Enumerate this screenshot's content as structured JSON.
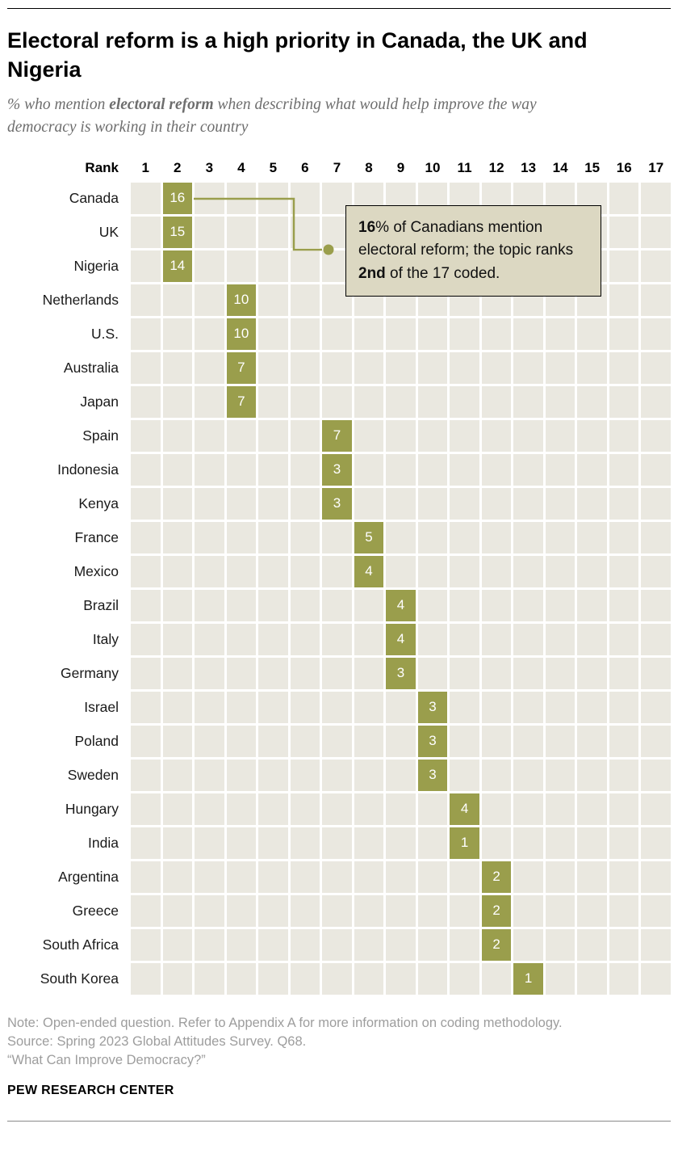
{
  "header": {
    "title": "Electoral reform is a high priority in Canada, the UK and Nigeria",
    "subtitle_prefix": "% who mention ",
    "subtitle_bold": "electoral reform",
    "subtitle_suffix": " when describing what would help improve the way democracy is working in their country"
  },
  "chart_data": {
    "type": "heatmap",
    "rank_header": "Rank",
    "rank_columns": [
      1,
      2,
      3,
      4,
      5,
      6,
      7,
      8,
      9,
      10,
      11,
      12,
      13,
      14,
      15,
      16,
      17
    ],
    "rows": [
      {
        "country": "Canada",
        "rank": 2,
        "value": 16
      },
      {
        "country": "UK",
        "rank": 2,
        "value": 15
      },
      {
        "country": "Nigeria",
        "rank": 2,
        "value": 14
      },
      {
        "country": "Netherlands",
        "rank": 4,
        "value": 10
      },
      {
        "country": "U.S.",
        "rank": 4,
        "value": 10
      },
      {
        "country": "Australia",
        "rank": 4,
        "value": 7
      },
      {
        "country": "Japan",
        "rank": 4,
        "value": 7
      },
      {
        "country": "Spain",
        "rank": 7,
        "value": 7
      },
      {
        "country": "Indonesia",
        "rank": 7,
        "value": 3
      },
      {
        "country": "Kenya",
        "rank": 7,
        "value": 3
      },
      {
        "country": "France",
        "rank": 8,
        "value": 5
      },
      {
        "country": "Mexico",
        "rank": 8,
        "value": 4
      },
      {
        "country": "Brazil",
        "rank": 9,
        "value": 4
      },
      {
        "country": "Italy",
        "rank": 9,
        "value": 4
      },
      {
        "country": "Germany",
        "rank": 9,
        "value": 3
      },
      {
        "country": "Israel",
        "rank": 10,
        "value": 3
      },
      {
        "country": "Poland",
        "rank": 10,
        "value": 3
      },
      {
        "country": "Sweden",
        "rank": 10,
        "value": 3
      },
      {
        "country": "Hungary",
        "rank": 11,
        "value": 4
      },
      {
        "country": "India",
        "rank": 11,
        "value": 1
      },
      {
        "country": "Argentina",
        "rank": 12,
        "value": 2
      },
      {
        "country": "Greece",
        "rank": 12,
        "value": 2
      },
      {
        "country": "South Africa",
        "rank": 12,
        "value": 2
      },
      {
        "country": "South Korea",
        "rank": 13,
        "value": 1
      }
    ],
    "title": "Electoral reform is a high priority in Canada, the UK and Nigeria",
    "legend_position": "none",
    "grid": true
  },
  "callout": {
    "segments": [
      {
        "text": "16",
        "bold": true
      },
      {
        "text": "% of Canadians mention electoral reform; the topic ranks ",
        "bold": false
      },
      {
        "text": "2nd",
        "bold": true
      },
      {
        "text": " of the 17 coded.",
        "bold": false
      }
    ]
  },
  "notes": {
    "note": "Note: Open-ended question. Refer to Appendix A for more information on coding methodology.",
    "source": "Source: Spring 2023 Global Attitudes Survey. Q68.",
    "quote": "“What Can Improve Democracy?”"
  },
  "footer": {
    "brand": "PEW RESEARCH CENTER"
  },
  "colors": {
    "highlight": "#9a9e4c",
    "cell_bg": "#eae8e0",
    "callout_bg": "#dcd8c2",
    "subtitle_gray": "#6e6e6e",
    "notes_gray": "#9d9d9d"
  }
}
